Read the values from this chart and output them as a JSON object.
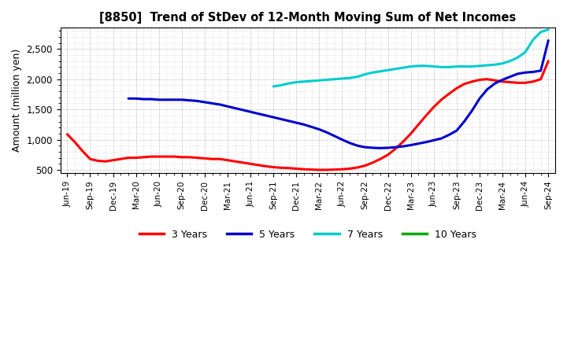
{
  "title": "[8850]  Trend of StDev of 12-Month Moving Sum of Net Incomes",
  "ylabel": "Amount (million yen)",
  "background_color": "#ffffff",
  "grid_color": "#888888",
  "ylim": [
    450,
    2850
  ],
  "yticks": [
    500,
    1000,
    1500,
    2000,
    2500
  ],
  "n_points": 22,
  "x_labels": [
    "Jun-19",
    "Sep-19",
    "Dec-19",
    "Mar-20",
    "Jun-20",
    "Sep-20",
    "Dec-20",
    "Mar-21",
    "Jun-21",
    "Sep-21",
    "Dec-21",
    "Mar-22",
    "Jun-22",
    "Sep-22",
    "Dec-22",
    "Mar-23",
    "Jun-23",
    "Sep-23",
    "Dec-23",
    "Mar-24",
    "Jun-24",
    "Sep-24"
  ],
  "series": {
    "3 Years": {
      "color": "#ff0000",
      "x": [
        0,
        0.33,
        0.67,
        1,
        1.33,
        1.67,
        2,
        2.33,
        2.67,
        3,
        3.33,
        3.67,
        4,
        4.33,
        4.67,
        5,
        5.33,
        5.67,
        6,
        6.33,
        6.67,
        7,
        7.33,
        7.67,
        8,
        8.33,
        8.67,
        9,
        9.33,
        9.67,
        10,
        10.33,
        10.67,
        11,
        11.33,
        11.67,
        12,
        12.33,
        12.67,
        13,
        13.33,
        13.67,
        14,
        14.33,
        14.67,
        15,
        15.33,
        15.67,
        16,
        16.33,
        16.67,
        17,
        17.33,
        17.67,
        18,
        18.33,
        18.67,
        19,
        19.33,
        19.67,
        20,
        20.33,
        20.67,
        21
      ],
      "y": [
        1090,
        960,
        810,
        680,
        650,
        640,
        660,
        680,
        700,
        700,
        710,
        720,
        720,
        720,
        720,
        710,
        710,
        700,
        690,
        680,
        680,
        660,
        640,
        620,
        600,
        580,
        560,
        545,
        535,
        530,
        520,
        510,
        505,
        500,
        500,
        505,
        510,
        520,
        540,
        570,
        620,
        680,
        750,
        850,
        970,
        1100,
        1250,
        1400,
        1540,
        1660,
        1760,
        1850,
        1920,
        1960,
        1990,
        2000,
        1980,
        1960,
        1950,
        1940,
        1940,
        1960,
        2000,
        2300
      ]
    },
    "5 Years": {
      "color": "#0000cc",
      "x": [
        2.67,
        3,
        3.33,
        3.67,
        4,
        4.33,
        4.67,
        5,
        5.33,
        5.67,
        6,
        6.33,
        6.67,
        7,
        7.33,
        7.67,
        8,
        8.33,
        8.67,
        9,
        9.33,
        9.67,
        10,
        10.33,
        10.67,
        11,
        11.33,
        11.67,
        12,
        12.33,
        12.67,
        13,
        13.33,
        13.67,
        14,
        14.33,
        14.67,
        15,
        15.33,
        15.67,
        16,
        16.33,
        16.67,
        17,
        17.33,
        17.67,
        18,
        18.33,
        18.67,
        19,
        19.33,
        19.67,
        20,
        20.33,
        20.67,
        21
      ],
      "y": [
        1680,
        1680,
        1670,
        1670,
        1660,
        1660,
        1660,
        1660,
        1650,
        1640,
        1620,
        1600,
        1580,
        1550,
        1520,
        1490,
        1460,
        1430,
        1400,
        1370,
        1340,
        1310,
        1280,
        1250,
        1210,
        1170,
        1120,
        1060,
        1000,
        945,
        900,
        875,
        865,
        860,
        865,
        875,
        890,
        910,
        935,
        960,
        990,
        1020,
        1080,
        1150,
        1300,
        1480,
        1680,
        1830,
        1930,
        1990,
        2040,
        2090,
        2110,
        2120,
        2140,
        2640
      ]
    },
    "7 Years": {
      "color": "#00cccc",
      "x": [
        9,
        9.33,
        9.67,
        10,
        10.33,
        10.67,
        11,
        11.33,
        11.67,
        12,
        12.33,
        12.67,
        13,
        13.33,
        13.67,
        14,
        14.33,
        14.67,
        15,
        15.33,
        15.67,
        16,
        16.33,
        16.67,
        17,
        17.33,
        17.67,
        18,
        18.33,
        18.67,
        19,
        19.33,
        19.67,
        20,
        20.33,
        20.67,
        21
      ],
      "y": [
        1880,
        1900,
        1930,
        1950,
        1960,
        1970,
        1980,
        1990,
        2000,
        2010,
        2020,
        2040,
        2080,
        2110,
        2130,
        2150,
        2170,
        2190,
        2210,
        2220,
        2220,
        2210,
        2200,
        2200,
        2210,
        2210,
        2210,
        2220,
        2230,
        2240,
        2260,
        2300,
        2360,
        2450,
        2650,
        2780,
        2820
      ]
    },
    "10 Years": {
      "color": "#00aa00",
      "x": [],
      "y": []
    }
  },
  "legend_labels": [
    "3 Years",
    "5 Years",
    "7 Years",
    "10 Years"
  ],
  "legend_colors": [
    "#ff0000",
    "#0000cc",
    "#00cccc",
    "#00aa00"
  ],
  "linewidth": 2.2
}
